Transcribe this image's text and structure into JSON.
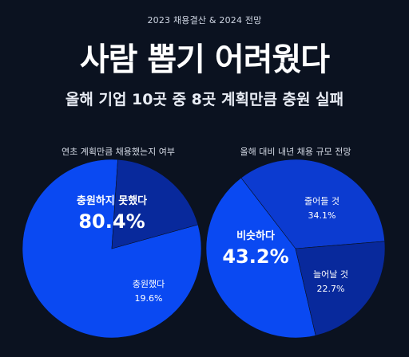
{
  "header": {
    "kicker": "2023 채용결산 & 2024 전망",
    "title": "사람 뽑기 어려웠다",
    "subtitle": "올해 기업 10곳 중 8곳 계획만큼 충원 실패"
  },
  "colors": {
    "background": "#0b1220",
    "blue_main": "#0a49f2",
    "blue_dark": "#08299c",
    "blue_mid": "#0c3bd0"
  },
  "chart_data": [
    {
      "type": "pie",
      "title": "연초 계획만큼 채용했는지 여부",
      "slices": [
        {
          "label": "충원하지 못했다",
          "value": 80.4,
          "value_text": "80.4%",
          "color": "#0a49f2"
        },
        {
          "label": "충원했다",
          "value": 19.6,
          "value_text": "19.6%",
          "color": "#08299c"
        }
      ]
    },
    {
      "type": "pie",
      "title": "올해 대비 내년 채용 규모 전망",
      "slices": [
        {
          "label": "비슷하다",
          "value": 43.2,
          "value_text": "43.2%",
          "color": "#0a49f2"
        },
        {
          "label": "줄어들 것",
          "value": 34.1,
          "value_text": "34.1%",
          "color": "#0c3bd0"
        },
        {
          "label": "늘어날 것",
          "value": 22.7,
          "value_text": "22.7%",
          "color": "#08299c"
        }
      ]
    }
  ]
}
